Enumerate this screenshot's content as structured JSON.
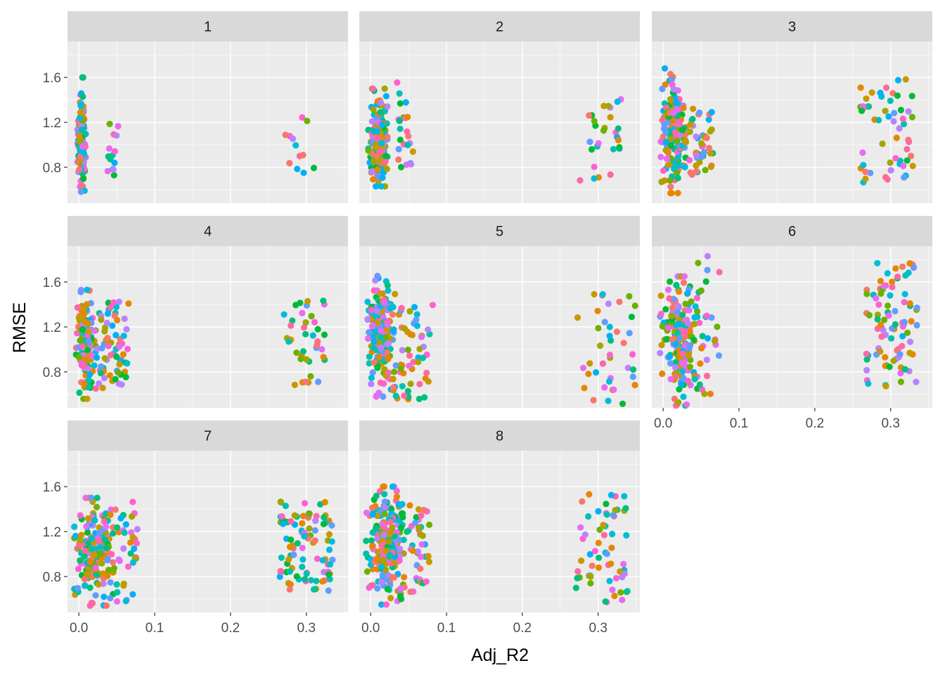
{
  "chart_data": {
    "type": "scatter",
    "xlabel": "Adj_R2",
    "ylabel": "RMSE",
    "xlim": [
      -0.015,
      0.355
    ],
    "ylim": [
      0.48,
      1.92
    ],
    "x_ticks": [
      0.0,
      0.1,
      0.2,
      0.3
    ],
    "x_tick_labels": [
      "0.0",
      "0.1",
      "0.2",
      "0.3"
    ],
    "y_ticks": [
      0.8,
      1.2,
      1.6
    ],
    "y_tick_labels": [
      "0.8",
      "1.2",
      "1.6"
    ],
    "grid": true,
    "legend": "none",
    "facet_layout": {
      "columns": 3,
      "rows": 3
    },
    "palette": [
      "#F8766D",
      "#E58700",
      "#C99800",
      "#A3A500",
      "#6BB100",
      "#00BA38",
      "#00BF7D",
      "#00C0AF",
      "#00BCD8",
      "#00B0F6",
      "#619CFF",
      "#B983FF",
      "#E76BF3",
      "#FD61D1",
      "#FF67A4"
    ],
    "panels": [
      {
        "label": "1",
        "clusters": [
          {
            "x": [
              -0.002,
              0.009
            ],
            "y": [
              0.52,
              1.6
            ],
            "n": 130,
            "shape": "normal"
          },
          {
            "x": [
              0.036,
              0.052
            ],
            "y": [
              0.72,
              1.22
            ],
            "n": 14,
            "shape": "uniform"
          },
          {
            "x": [
              0.272,
              0.31
            ],
            "y": [
              0.67,
              1.3
            ],
            "n": 12,
            "shape": "uniform"
          }
        ]
      },
      {
        "label": "2",
        "clusters": [
          {
            "x": [
              -0.003,
              0.022
            ],
            "y": [
              0.63,
              1.5
            ],
            "n": 160,
            "shape": "normal"
          },
          {
            "x": [
              0.034,
              0.056
            ],
            "y": [
              0.72,
              1.56
            ],
            "n": 24,
            "shape": "uniform"
          },
          {
            "x": [
              0.275,
              0.33
            ],
            "y": [
              0.67,
              1.43
            ],
            "n": 28,
            "shape": "uniform"
          }
        ]
      },
      {
        "label": "3",
        "clusters": [
          {
            "x": [
              -0.003,
              0.03
            ],
            "y": [
              0.57,
              1.68
            ],
            "n": 170,
            "shape": "normal"
          },
          {
            "x": [
              0.025,
              0.066
            ],
            "y": [
              0.73,
              1.33
            ],
            "n": 50,
            "shape": "uniform"
          },
          {
            "x": [
              0.26,
              0.33
            ],
            "y": [
              0.62,
              1.6
            ],
            "n": 55,
            "shape": "uniform"
          }
        ]
      },
      {
        "label": "4",
        "clusters": [
          {
            "x": [
              -0.004,
              0.022
            ],
            "y": [
              0.56,
              1.53
            ],
            "n": 140,
            "shape": "normal"
          },
          {
            "x": [
              0.02,
              0.066
            ],
            "y": [
              0.65,
              1.45
            ],
            "n": 70,
            "shape": "uniform"
          },
          {
            "x": [
              0.268,
              0.325
            ],
            "y": [
              0.66,
              1.46
            ],
            "n": 40,
            "shape": "uniform"
          }
        ]
      },
      {
        "label": "5",
        "clusters": [
          {
            "x": [
              -0.004,
              0.032
            ],
            "y": [
              0.58,
              1.71
            ],
            "n": 190,
            "shape": "normal"
          },
          {
            "x": [
              0.028,
              0.082
            ],
            "y": [
              0.48,
              1.4
            ],
            "n": 60,
            "shape": "uniform"
          },
          {
            "x": [
              0.27,
              0.35
            ],
            "y": [
              0.5,
              1.55
            ],
            "n": 40,
            "shape": "uniform"
          }
        ]
      },
      {
        "label": "6",
        "clusters": [
          {
            "x": [
              -0.004,
              0.045
            ],
            "y": [
              0.5,
              1.65
            ],
            "n": 180,
            "shape": "normal"
          },
          {
            "x": [
              0.035,
              0.078
            ],
            "y": [
              0.6,
              1.84
            ],
            "n": 40,
            "shape": "uniform"
          },
          {
            "x": [
              0.268,
              0.335
            ],
            "y": [
              0.65,
              1.78
            ],
            "n": 90,
            "shape": "uniform"
          }
        ]
      },
      {
        "label": "7",
        "clusters": [
          {
            "x": [
              -0.006,
              0.045
            ],
            "y": [
              0.54,
              1.5
            ],
            "n": 190,
            "shape": "normal"
          },
          {
            "x": [
              0.035,
              0.078
            ],
            "y": [
              0.54,
              1.52
            ],
            "n": 50,
            "shape": "uniform"
          },
          {
            "x": [
              0.265,
              0.335
            ],
            "y": [
              0.66,
              1.47
            ],
            "n": 90,
            "shape": "uniform"
          }
        ]
      },
      {
        "label": "8",
        "clusters": [
          {
            "x": [
              -0.006,
              0.05
            ],
            "y": [
              0.55,
              1.6
            ],
            "n": 200,
            "shape": "normal"
          },
          {
            "x": [
              0.035,
              0.078
            ],
            "y": [
              0.58,
              1.45
            ],
            "n": 50,
            "shape": "uniform"
          },
          {
            "x": [
              0.27,
              0.34
            ],
            "y": [
              0.57,
              1.54
            ],
            "n": 60,
            "shape": "uniform"
          }
        ]
      }
    ]
  }
}
